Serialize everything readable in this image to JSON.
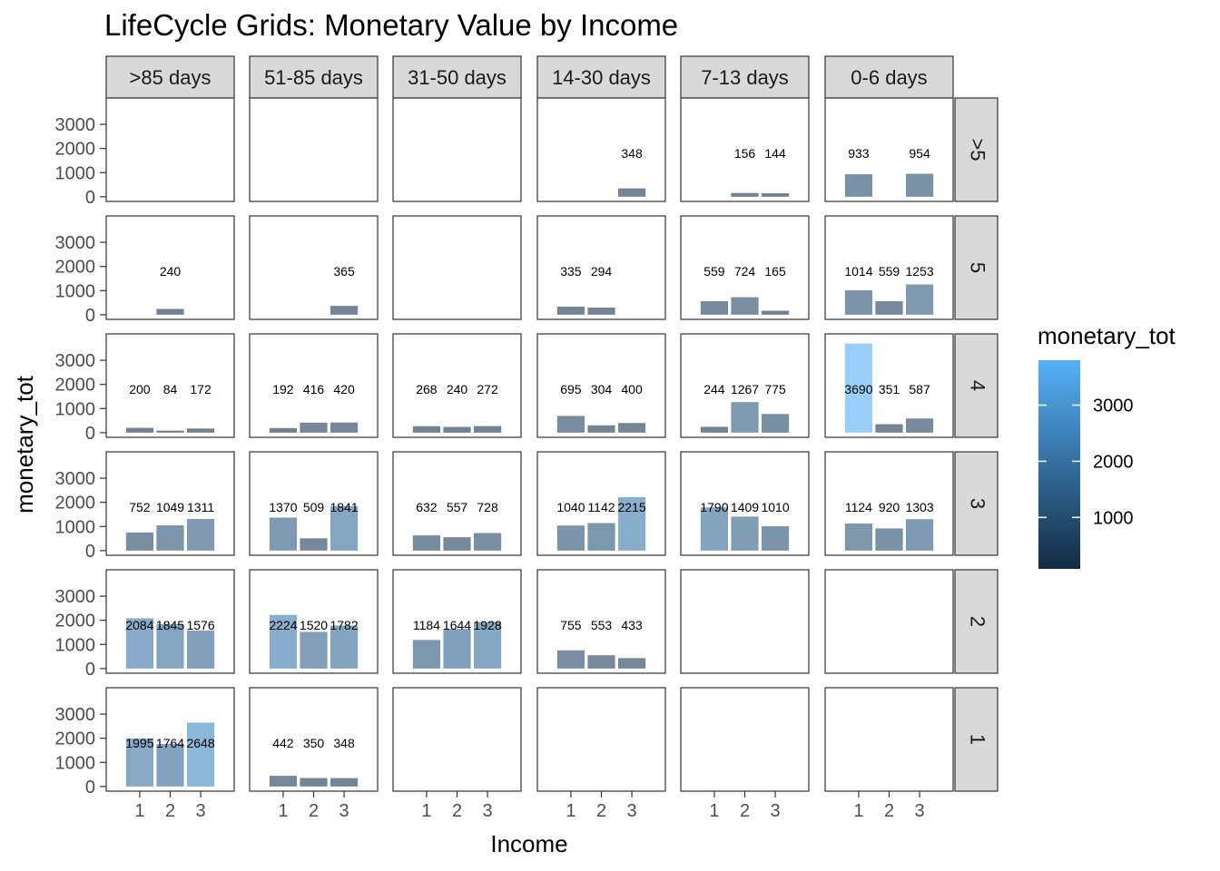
{
  "chart_data": {
    "type": "bar",
    "title": "LifeCycle Grids: Monetary Value by Income",
    "xlabel": "Income",
    "ylabel": "monetary_tot",
    "column_facets": [
      ">85 days",
      "51-85 days",
      "31-50 days",
      "14-30 days",
      "7-13 days",
      "0-6 days"
    ],
    "row_facets": [
      ">5",
      "5",
      "4",
      "3",
      "2",
      "1"
    ],
    "categories": [
      "1",
      "2",
      "3"
    ],
    "ylim": [
      0,
      3900
    ],
    "y_ticks": [
      0,
      1000,
      2000,
      3000
    ],
    "y_tick_labels": [
      "0",
      "1000",
      "2000",
      "3000"
    ],
    "label_y": 1800,
    "legend": {
      "title": "monetary_tot",
      "ticks": [
        1000,
        2000,
        3000
      ],
      "tick_labels": [
        "1000",
        "2000",
        "3000"
      ],
      "min": 84,
      "max": 3800,
      "low_color": "#132b43",
      "high_color": "#56b1f7",
      "placement": "right"
    },
    "bar_alpha": 0.6,
    "cells": [
      {
        "row": ">5",
        "col": "14-30 days",
        "values": [
          null,
          null,
          348
        ]
      },
      {
        "row": ">5",
        "col": "7-13 days",
        "values": [
          null,
          156,
          144
        ]
      },
      {
        "row": ">5",
        "col": "0-6 days",
        "values": [
          933,
          null,
          954
        ]
      },
      {
        "row": "5",
        "col": ">85 days",
        "values": [
          null,
          240,
          null
        ]
      },
      {
        "row": "5",
        "col": "51-85 days",
        "values": [
          null,
          null,
          365
        ]
      },
      {
        "row": "5",
        "col": "14-30 days",
        "values": [
          335,
          294,
          null
        ]
      },
      {
        "row": "5",
        "col": "7-13 days",
        "values": [
          559,
          724,
          165
        ]
      },
      {
        "row": "5",
        "col": "0-6 days",
        "values": [
          1014,
          559,
          1253
        ]
      },
      {
        "row": "4",
        "col": ">85 days",
        "values": [
          200,
          84,
          172
        ]
      },
      {
        "row": "4",
        "col": "51-85 days",
        "values": [
          192,
          416,
          420
        ]
      },
      {
        "row": "4",
        "col": "31-50 days",
        "values": [
          268,
          240,
          272
        ]
      },
      {
        "row": "4",
        "col": "14-30 days",
        "values": [
          695,
          304,
          400
        ]
      },
      {
        "row": "4",
        "col": "7-13 days",
        "values": [
          244,
          1267,
          775
        ]
      },
      {
        "row": "4",
        "col": "0-6 days",
        "values": [
          3690,
          351,
          587
        ]
      },
      {
        "row": "3",
        "col": ">85 days",
        "values": [
          752,
          1049,
          1311
        ]
      },
      {
        "row": "3",
        "col": "51-85 days",
        "values": [
          1370,
          509,
          1841
        ]
      },
      {
        "row": "3",
        "col": "31-50 days",
        "values": [
          632,
          557,
          728
        ]
      },
      {
        "row": "3",
        "col": "14-30 days",
        "values": [
          1040,
          1142,
          2215
        ]
      },
      {
        "row": "3",
        "col": "7-13 days",
        "values": [
          1790,
          1409,
          1010
        ]
      },
      {
        "row": "3",
        "col": "0-6 days",
        "values": [
          1124,
          920,
          1303
        ]
      },
      {
        "row": "2",
        "col": ">85 days",
        "values": [
          2084,
          1845,
          1576
        ]
      },
      {
        "row": "2",
        "col": "51-85 days",
        "values": [
          2224,
          1520,
          1782
        ]
      },
      {
        "row": "2",
        "col": "31-50 days",
        "values": [
          1184,
          1644,
          1928
        ]
      },
      {
        "row": "2",
        "col": "14-30 days",
        "values": [
          755,
          553,
          433
        ]
      },
      {
        "row": "1",
        "col": ">85 days",
        "values": [
          1995,
          1764,
          2648
        ]
      },
      {
        "row": "1",
        "col": "51-85 days",
        "values": [
          442,
          350,
          348
        ]
      }
    ]
  }
}
